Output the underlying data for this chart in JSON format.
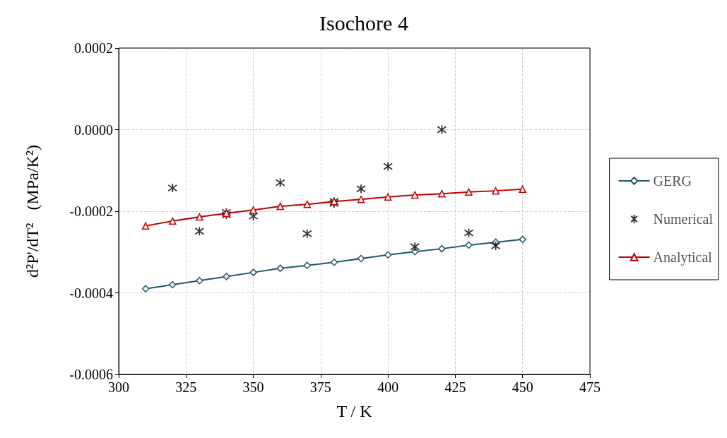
{
  "chart_data": {
    "type": "line",
    "title": "Isochore 4",
    "xlabel": "T / K",
    "ylabel": "d²P'/dT²   (MPa/K²)",
    "xlim": [
      300,
      475
    ],
    "xticks": [
      300,
      325,
      350,
      375,
      400,
      425,
      450,
      475
    ],
    "ylim": [
      -0.0006,
      0.0002
    ],
    "yticks": [
      {
        "value": -0.0006,
        "label": "-0.0006"
      },
      {
        "value": -0.0004,
        "label": "-0.0004"
      },
      {
        "value": -0.0002,
        "label": "-0.0002"
      },
      {
        "value": 0,
        "label": "0.0000"
      },
      {
        "value": 0.0002,
        "label": "0.0002"
      }
    ],
    "grid": true,
    "legend": "right",
    "line_style": "solid",
    "series": [
      {
        "name": "GERG",
        "marker": "diamond",
        "color": "#215967",
        "x": [
          310,
          320,
          330,
          340,
          350,
          360,
          370,
          380,
          390,
          400,
          410,
          420,
          430,
          440,
          450
        ],
        "values": [
          -0.00039,
          -0.00038,
          -0.00037,
          -0.00036,
          -0.00035,
          -0.00034,
          -0.000333,
          -0.000325,
          -0.000316,
          -0.000307,
          -0.000299,
          -0.000292,
          -0.000283,
          -0.000276,
          -0.000269
        ]
      },
      {
        "name": "Numerical",
        "type": "scatter",
        "marker": "cross",
        "color": "#000000",
        "x": [
          320,
          330,
          340,
          340,
          350,
          360,
          370,
          380,
          380,
          390,
          400,
          410,
          420,
          430,
          440
        ],
        "values": [
          -0.000143,
          -0.000249,
          -0.000209,
          -0.000203,
          -0.000212,
          -0.00013,
          -0.000255,
          -0.000181,
          -0.000176,
          -0.000145,
          -9e-05,
          -0.000287,
          0,
          -0.000253,
          -0.000285
        ]
      },
      {
        "name": "Analytical",
        "marker": "triangle",
        "color": "#c00000",
        "x": [
          310,
          320,
          330,
          340,
          350,
          360,
          370,
          380,
          390,
          400,
          410,
          420,
          430,
          440,
          450
        ],
        "values": [
          -0.000236,
          -0.000224,
          -0.000214,
          -0.000205,
          -0.000197,
          -0.000188,
          -0.000183,
          -0.000176,
          -0.000171,
          -0.000165,
          -0.00016,
          -0.000157,
          -0.000153,
          -0.00015,
          -0.000146
        ]
      }
    ]
  }
}
